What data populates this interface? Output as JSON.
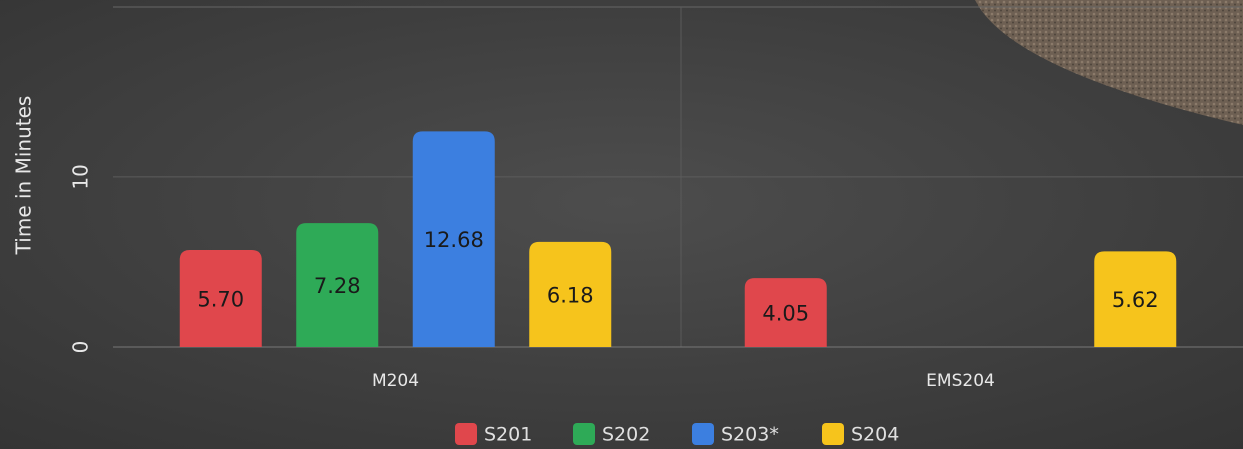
{
  "chart_data": {
    "type": "bar",
    "y_label": "Time in Minutes",
    "categories": [
      "M204",
      "EMS204"
    ],
    "series": [
      {
        "name": "S201",
        "color": "#e0474c",
        "values": [
          5.7,
          4.05
        ],
        "value_labels": [
          "5.70",
          "4.05"
        ]
      },
      {
        "name": "S202",
        "color": "#2eaa57",
        "values": [
          7.28,
          null
        ],
        "value_labels": [
          "7.28",
          null
        ]
      },
      {
        "name": "S203*",
        "color": "#3c7fe0",
        "values": [
          12.68,
          null
        ],
        "value_labels": [
          "12.68",
          null
        ]
      },
      {
        "name": "S204",
        "color": "#f6c41c",
        "values": [
          6.18,
          5.62
        ],
        "value_labels": [
          "6.18",
          "5.62"
        ]
      }
    ],
    "ylim": [
      0,
      20.4
    ],
    "yticks": [
      0,
      10
    ],
    "grid": true,
    "legend": "bottom"
  }
}
